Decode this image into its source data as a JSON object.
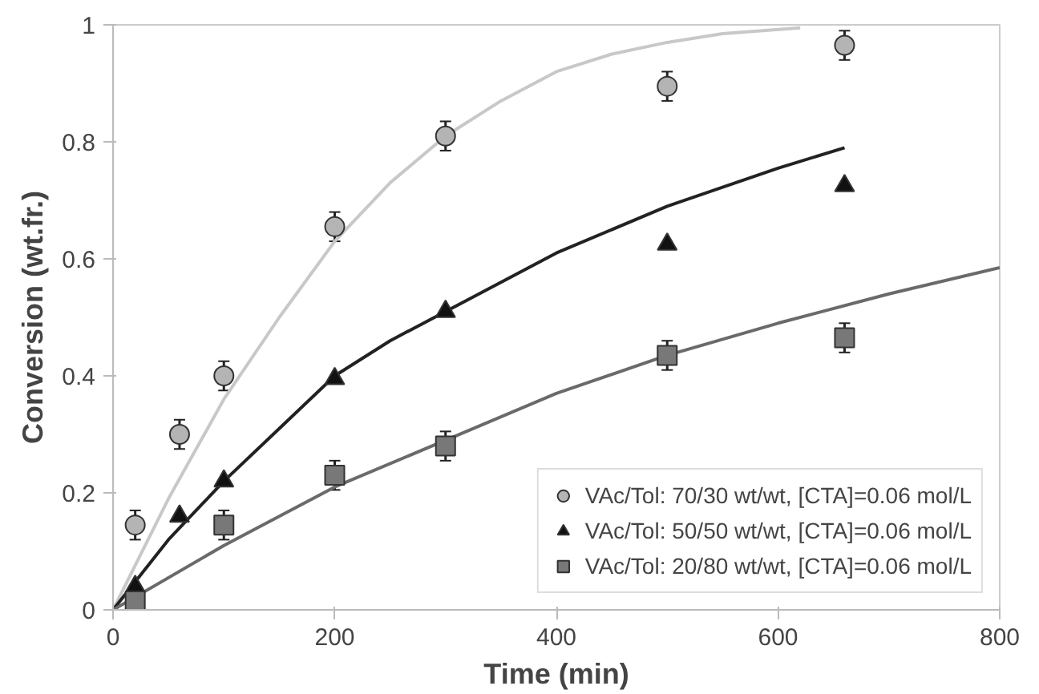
{
  "chart_data": {
    "type": "scatter",
    "xlabel": "Time (min)",
    "ylabel": "Conversion (wt.fr.)",
    "xlim": [
      0,
      800
    ],
    "xticks": [
      0,
      200,
      400,
      600,
      800
    ],
    "ylim": [
      0,
      1
    ],
    "yticks": [
      0,
      0.2,
      0.4,
      0.6,
      0.8,
      1
    ],
    "grid": false,
    "legend": "bottom right",
    "series": [
      {
        "type": "line",
        "color": "#c8c8c8",
        "x": [
          0,
          50,
          100,
          150,
          200,
          250,
          300,
          350,
          400,
          450,
          500,
          550,
          620
        ],
        "values": [
          0,
          0.19,
          0.36,
          0.5,
          0.63,
          0.73,
          0.81,
          0.87,
          0.92,
          0.95,
          0.97,
          0.985,
          0.995
        ]
      },
      {
        "type": "line",
        "color": "#222222",
        "x": [
          0,
          50,
          100,
          150,
          200,
          250,
          300,
          400,
          500,
          600,
          660
        ],
        "values": [
          0,
          0.12,
          0.22,
          0.31,
          0.4,
          0.46,
          0.51,
          0.61,
          0.69,
          0.755,
          0.79
        ]
      },
      {
        "type": "line",
        "color": "#6a6a6a",
        "x": [
          0,
          100,
          200,
          300,
          400,
          500,
          600,
          700,
          800
        ],
        "values": [
          0,
          0.11,
          0.21,
          0.29,
          0.37,
          0.435,
          0.49,
          0.54,
          0.585
        ]
      },
      {
        "marker": "circle",
        "name": "VAc/Tol: 70/30 wt/wt, [CTA]=0.06 mol/L",
        "color": "#b4b4b4",
        "x": [
          20,
          60,
          100,
          200,
          300,
          500,
          660
        ],
        "values": [
          0.145,
          0.3,
          0.4,
          0.655,
          0.81,
          0.895,
          0.965
        ],
        "errors": [
          0.025,
          0.025,
          0.025,
          0.025,
          0.025,
          0.025,
          0.025
        ]
      },
      {
        "marker": "triangle",
        "name": "VAc/Tol: 50/50 wt/wt, [CTA]=0.06 mol/L",
        "color": "#111111",
        "x": [
          20,
          60,
          100,
          200,
          300,
          500,
          660
        ],
        "values": [
          0.04,
          0.16,
          0.22,
          0.395,
          0.51,
          0.625,
          0.725
        ]
      },
      {
        "marker": "square",
        "name": "VAc/Tol: 20/80 wt/wt, [CTA]=0.06 mol/L",
        "color": "#787878",
        "x": [
          20,
          100,
          200,
          300,
          500,
          660
        ],
        "values": [
          0.015,
          0.145,
          0.23,
          0.28,
          0.435,
          0.465
        ],
        "errors": [
          0.025,
          0.025,
          0.025,
          0.025,
          0.025,
          0.025
        ]
      }
    ]
  }
}
